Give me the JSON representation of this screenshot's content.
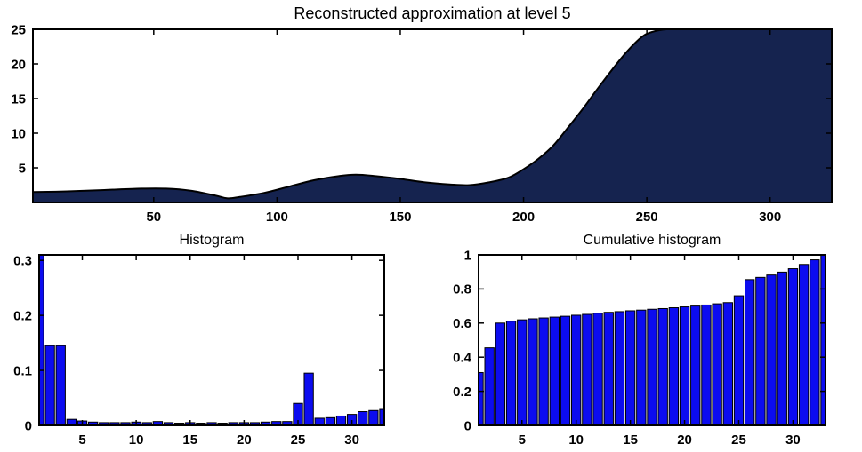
{
  "figure": {
    "background": "#ffffff"
  },
  "chart_data": [
    {
      "id": "approximation",
      "type": "area",
      "title": "Reconstructed approximation at level 5",
      "x": [
        1,
        15,
        30,
        45,
        55,
        65,
        75,
        80,
        85,
        95,
        105,
        115,
        125,
        132,
        140,
        150,
        160,
        170,
        178,
        186,
        194,
        200,
        206,
        212,
        218,
        224,
        230,
        236,
        242,
        248,
        252,
        258,
        270,
        300,
        325
      ],
      "y": [
        1.5,
        1.6,
        1.8,
        2.0,
        2.0,
        1.7,
        1.0,
        0.6,
        0.8,
        1.4,
        2.3,
        3.2,
        3.8,
        4.0,
        3.8,
        3.4,
        2.9,
        2.6,
        2.5,
        2.9,
        3.6,
        4.8,
        6.3,
        8.2,
        10.8,
        13.5,
        16.4,
        19.2,
        21.8,
        23.9,
        24.6,
        25,
        25,
        25,
        25
      ],
      "xlim": [
        1,
        325
      ],
      "ylim": [
        0,
        25
      ],
      "xticks": [
        50,
        100,
        150,
        200,
        250,
        300
      ],
      "yticks": [
        5,
        10,
        15,
        20,
        25
      ],
      "fill_color": "#15234F",
      "line_color": "#000000",
      "grid": false,
      "legend": null
    },
    {
      "id": "histogram",
      "type": "bar",
      "title": "Histogram",
      "bin_centers": [
        1,
        2,
        3,
        4,
        5,
        6,
        7,
        8,
        9,
        10,
        11,
        12,
        13,
        14,
        15,
        16,
        17,
        18,
        19,
        20,
        21,
        22,
        23,
        24,
        25,
        26,
        27,
        28,
        29,
        30,
        31,
        32,
        33
      ],
      "values": [
        0.31,
        0.145,
        0.145,
        0.011,
        0.008,
        0.006,
        0.005,
        0.005,
        0.005,
        0.006,
        0.005,
        0.007,
        0.005,
        0.004,
        0.005,
        0.004,
        0.005,
        0.004,
        0.005,
        0.005,
        0.005,
        0.006,
        0.007,
        0.007,
        0.04,
        0.095,
        0.013,
        0.014,
        0.017,
        0.02,
        0.025,
        0.027,
        0.029
      ],
      "xlim": [
        1,
        33
      ],
      "ylim": [
        0,
        0.31
      ],
      "xticks": [
        5,
        10,
        15,
        20,
        25,
        30
      ],
      "yticks": [
        0,
        0.1,
        0.2,
        0.3
      ],
      "bar_color": "#0C0CF0",
      "edge_color": "#000000",
      "grid": false,
      "legend": null
    },
    {
      "id": "cumulative",
      "type": "bar",
      "title": "Cumulative histogram",
      "bin_centers": [
        1,
        2,
        3,
        4,
        5,
        6,
        7,
        8,
        9,
        10,
        11,
        12,
        13,
        14,
        15,
        16,
        17,
        18,
        19,
        20,
        21,
        22,
        23,
        24,
        25,
        26,
        27,
        28,
        29,
        30,
        31,
        32,
        33
      ],
      "values": [
        0.31,
        0.455,
        0.6,
        0.611,
        0.619,
        0.625,
        0.63,
        0.635,
        0.64,
        0.646,
        0.651,
        0.658,
        0.663,
        0.667,
        0.672,
        0.676,
        0.681,
        0.685,
        0.69,
        0.695,
        0.7,
        0.706,
        0.713,
        0.72,
        0.76,
        0.855,
        0.868,
        0.882,
        0.899,
        0.919,
        0.944,
        0.971,
        1.0
      ],
      "xlim": [
        1,
        33
      ],
      "ylim": [
        0,
        1
      ],
      "xticks": [
        5,
        10,
        15,
        20,
        25,
        30
      ],
      "yticks": [
        0,
        0.2,
        0.4,
        0.6,
        0.8,
        1
      ],
      "bar_color": "#0C0CF0",
      "edge_color": "#000000",
      "grid": false,
      "legend": null
    }
  ]
}
